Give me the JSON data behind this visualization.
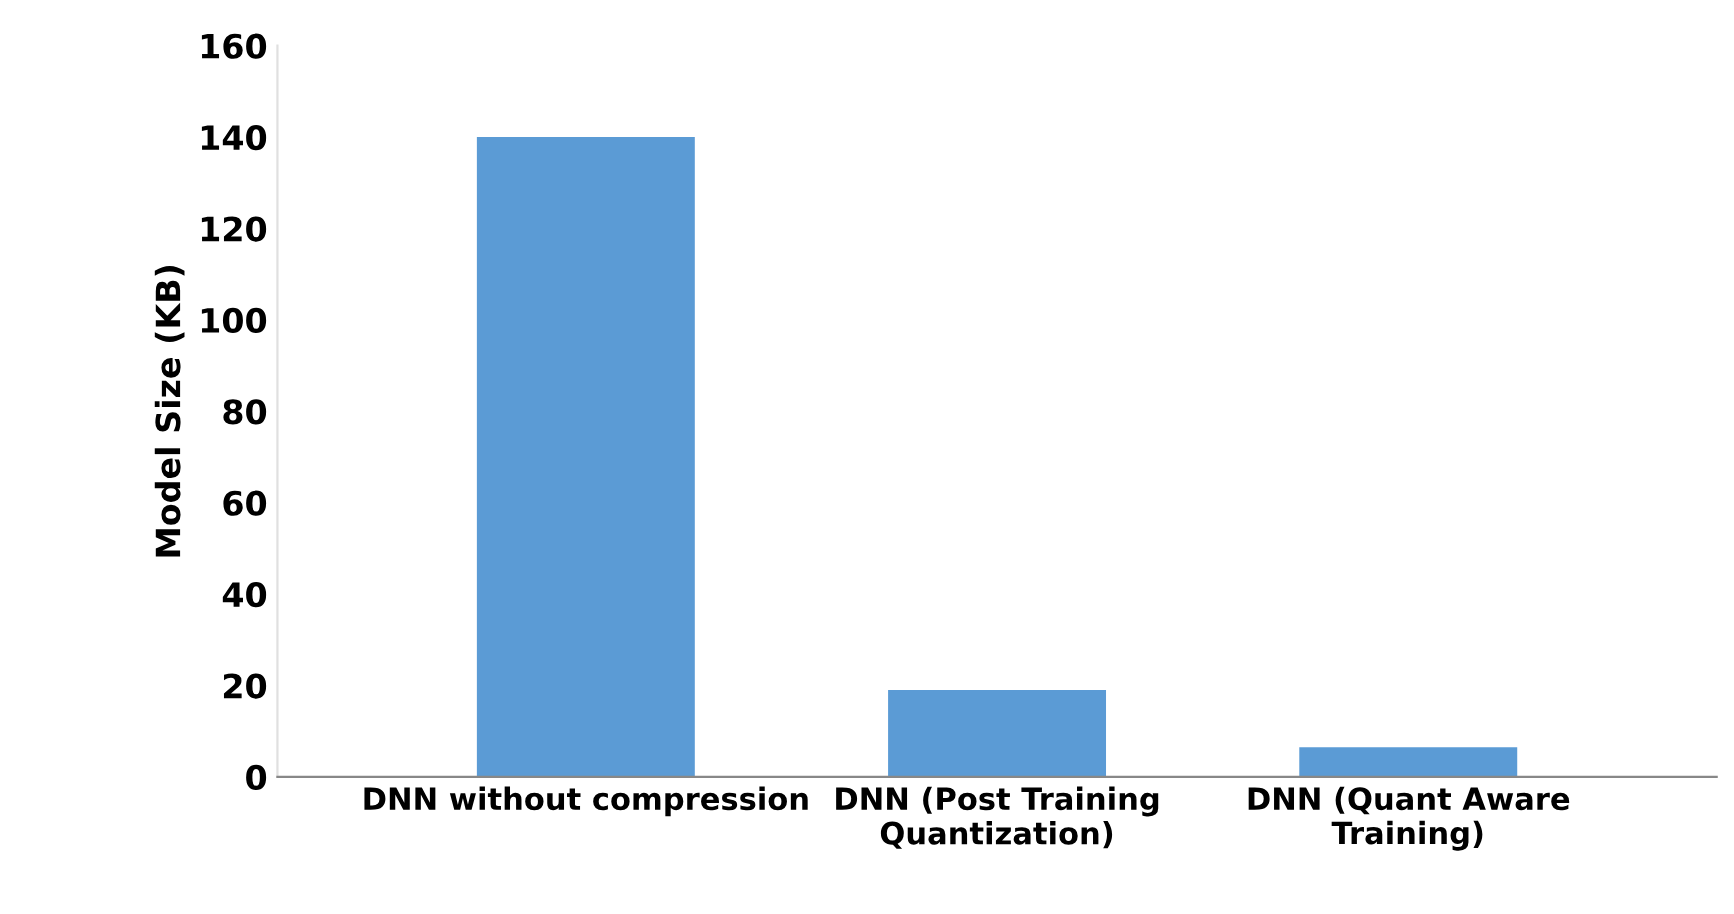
{
  "chart_data": {
    "type": "bar",
    "ylabel": "Model Size (KB)",
    "categories": [
      "DNN without compression",
      "DNN (Post Training\nQuantization)",
      "DNN (Quant Aware\nTraining)"
    ],
    "values": [
      140,
      19,
      6.5
    ],
    "color": "#5b9bd5",
    "ylim": [
      0,
      160
    ],
    "yticks": [
      0,
      20,
      40,
      60,
      80,
      100,
      120,
      140,
      160
    ],
    "grid": false,
    "legend": false
  }
}
